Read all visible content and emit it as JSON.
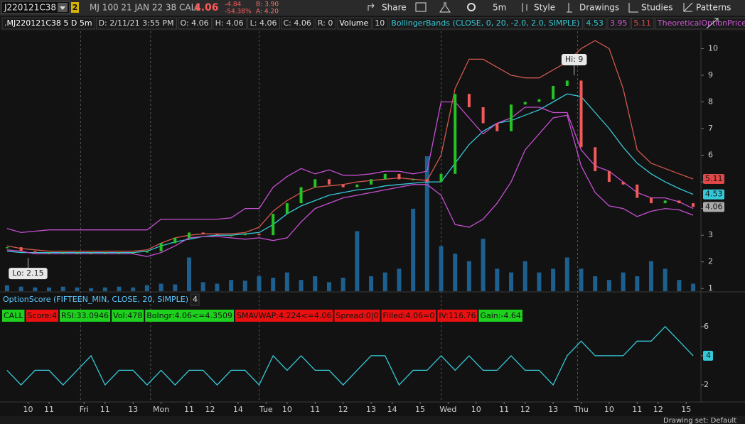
{
  "toolbar": {
    "symbol": "J220121C38",
    "link_group": "2",
    "description": "MJ 100 21 JAN 22 38 CALL",
    "last": "4.06",
    "change": "-4.84",
    "change_pct": "-54.38%",
    "bid": "B: 3.90",
    "ask": "A: 4.20",
    "buttons": [
      "Share",
      "5m",
      "Style",
      "Drawings",
      "Studies",
      "Patterns"
    ]
  },
  "info_bar": [
    {
      "text": ".MJ220121C38 5 D 5m",
      "color": "#ffffff"
    },
    {
      "text": "D: 2/11/21 3:55 PM",
      "color": "#d8d8d8"
    },
    {
      "text": "O: 4.06",
      "color": "#d8d8d8"
    },
    {
      "text": "H: 4.06",
      "color": "#d8d8d8"
    },
    {
      "text": "L: 4.06",
      "color": "#d8d8d8"
    },
    {
      "text": "C: 4.06",
      "color": "#d8d8d8"
    },
    {
      "text": "R: 0",
      "color": "#d8d8d8"
    },
    {
      "text": "Volume",
      "color": "#ffffff"
    },
    {
      "text": "10",
      "color": "#d8d8d8"
    },
    {
      "text": "BollingerBands (CLOSE, 0, 20, -2.0, 2.0, SIMPLE)",
      "color": "#35c9d8"
    },
    {
      "text": "4.53",
      "color": "#35c9d8"
    },
    {
      "text": "3.95",
      "color": "#d05ad8"
    },
    {
      "text": "5.11",
      "color": "#e04848"
    },
    {
      "text": "TheoreticalOptionPrice",
      "color": "#d05ad8"
    },
    {
      "text": "..",
      "color": "#d8d8d8"
    }
  ],
  "option_score_labels": [
    {
      "text": "CALL",
      "color": "#1fd11f"
    },
    {
      "text": "Score:4",
      "color": "#e81010"
    },
    {
      "text": "RSI:33.0946",
      "color": "#1fd11f"
    },
    {
      "text": "Vol:478",
      "color": "#1fd11f"
    },
    {
      "text": "Bolngr:4.06<=4.3509",
      "color": "#1fd11f"
    },
    {
      "text": "SMAVWAP:4.224<=4.06",
      "color": "#e81010"
    },
    {
      "text": "Spread:0|0",
      "color": "#e81010"
    },
    {
      "text": "Filled:4.06=0",
      "color": "#e81010"
    },
    {
      "text": "IV:116.76",
      "color": "#e81010"
    },
    {
      "text": "Gain:-4.64",
      "color": "#1fd11f"
    }
  ],
  "status_bar": "Drawing set: Default",
  "chart_data": [
    {
      "type": "candle-line",
      "xlim": [
        -0.5,
        98.5
      ],
      "ylim": [
        0.9,
        10.65
      ],
      "yticks": [
        1,
        2,
        3,
        4,
        5,
        6,
        7,
        8,
        9,
        10
      ],
      "xticks": [
        {
          "value": 3,
          "label": "10"
        },
        {
          "value": 6,
          "label": "11"
        },
        {
          "value": 11,
          "label": "Fri"
        },
        {
          "value": 14,
          "label": "11"
        },
        {
          "value": 18,
          "label": "13"
        },
        {
          "value": 22,
          "label": "Mon"
        },
        {
          "value": 26,
          "label": "11"
        },
        {
          "value": 29,
          "label": "12"
        },
        {
          "value": 33,
          "label": "14"
        },
        {
          "value": 37,
          "label": "Tue"
        },
        {
          "value": 40,
          "label": "10"
        },
        {
          "value": 44,
          "label": "11"
        },
        {
          "value": 48,
          "label": "12"
        },
        {
          "value": 52,
          "label": "13"
        },
        {
          "value": 55,
          "label": "14"
        },
        {
          "value": 59,
          "label": "15"
        },
        {
          "value": 63,
          "label": "Wed"
        },
        {
          "value": 67,
          "label": "10"
        },
        {
          "value": 71,
          "label": "11"
        },
        {
          "value": 74,
          "label": "12"
        },
        {
          "value": 78,
          "label": "13"
        },
        {
          "value": 82,
          "label": "Thu"
        },
        {
          "value": 86,
          "label": "10"
        },
        {
          "value": 90,
          "label": "11"
        },
        {
          "value": 93,
          "label": "12"
        },
        {
          "value": 97,
          "label": "15"
        }
      ],
      "session_breaks": [
        10.5,
        20.5,
        36,
        62,
        81.5
      ],
      "x": [
        0,
        2,
        4,
        6,
        8,
        10,
        12,
        14,
        16,
        18,
        20,
        22,
        24,
        26,
        28,
        30,
        32,
        34,
        36,
        38,
        40,
        42,
        44,
        46,
        48,
        50,
        52,
        54,
        56,
        58,
        60,
        62,
        64,
        66,
        68,
        70,
        72,
        74,
        76,
        78,
        80,
        82,
        84,
        86,
        88,
        90,
        92,
        94,
        96,
        98
      ],
      "close": [
        2.55,
        2.4,
        2.35,
        2.35,
        2.35,
        2.35,
        2.35,
        2.35,
        2.35,
        2.35,
        2.4,
        2.7,
        2.9,
        3.1,
        3.05,
        3.0,
        3.0,
        3.05,
        3.0,
        3.8,
        4.2,
        4.8,
        5.1,
        4.9,
        4.8,
        4.9,
        5.1,
        5.3,
        5.1,
        5.1,
        5.0,
        5.3,
        8.3,
        7.8,
        7.2,
        6.9,
        7.9,
        8.0,
        8.1,
        8.6,
        8.8,
        6.3,
        5.4,
        5.0,
        4.9,
        4.4,
        4.2,
        4.3,
        4.2,
        4.06
      ],
      "up_color": "#27c227",
      "down_color": "#f05a5a",
      "volume": [
        8,
        6,
        5,
        5,
        6,
        5,
        4,
        5,
        6,
        5,
        8,
        10,
        9,
        45,
        12,
        10,
        15,
        14,
        20,
        18,
        25,
        15,
        20,
        12,
        18,
        80,
        20,
        25,
        30,
        110,
        180,
        60,
        50,
        40,
        70,
        30,
        25,
        40,
        25,
        30,
        45,
        30,
        20,
        15,
        25,
        20,
        40,
        30,
        15,
        10
      ],
      "volume_color": "#1d5f8e",
      "series": [
        {
          "color": "#d0584c",
          "values": [
            2.6,
            2.5,
            2.45,
            2.4,
            2.4,
            2.4,
            2.4,
            2.4,
            2.4,
            2.4,
            2.45,
            2.7,
            2.9,
            3.0,
            3.05,
            3.05,
            3.05,
            3.1,
            3.3,
            3.9,
            4.3,
            4.6,
            4.8,
            4.85,
            4.9,
            5.0,
            5.05,
            5.1,
            5.15,
            5.1,
            5.05,
            6.0,
            8.5,
            9.6,
            9.6,
            9.3,
            9.0,
            8.9,
            8.9,
            9.2,
            9.5,
            10.0,
            10.3,
            10.0,
            8.5,
            6.2,
            5.7,
            5.5,
            5.3,
            5.11
          ]
        },
        {
          "color": "#35c9d8",
          "values": [
            2.4,
            2.35,
            2.35,
            2.35,
            2.35,
            2.35,
            2.35,
            2.35,
            2.35,
            2.35,
            2.4,
            2.6,
            2.75,
            2.85,
            2.95,
            3.0,
            3.0,
            3.05,
            3.1,
            3.4,
            3.8,
            4.1,
            4.3,
            4.5,
            4.6,
            4.7,
            4.75,
            4.85,
            4.9,
            4.95,
            5.0,
            5.0,
            5.7,
            6.4,
            6.9,
            7.2,
            7.3,
            7.5,
            7.7,
            8.0,
            8.3,
            8.2,
            7.6,
            7.0,
            6.3,
            5.7,
            5.3,
            5.0,
            4.75,
            4.53
          ]
        },
        {
          "color": "#c64fd2",
          "values": [
            3.25,
            3.1,
            3.15,
            3.2,
            3.2,
            3.2,
            3.2,
            3.2,
            3.2,
            3.2,
            3.2,
            3.6,
            3.6,
            3.6,
            3.6,
            3.6,
            3.65,
            4.0,
            4.0,
            4.8,
            5.2,
            5.5,
            5.3,
            5.45,
            5.25,
            5.25,
            5.3,
            5.4,
            5.4,
            5.3,
            5.4,
            8.0,
            8.0,
            7.4,
            6.8,
            7.2,
            7.4,
            7.8,
            7.8,
            7.6,
            7.6,
            6.2,
            5.6,
            5.4,
            5.0,
            4.6,
            4.4,
            4.4,
            4.25,
            4.0
          ]
        },
        {
          "color": "#c64fd2",
          "values": [
            2.45,
            2.4,
            2.3,
            2.3,
            2.3,
            2.3,
            2.3,
            2.3,
            2.3,
            2.3,
            2.2,
            2.35,
            2.6,
            2.9,
            2.95,
            2.95,
            2.9,
            2.85,
            2.9,
            2.8,
            2.9,
            3.5,
            4.0,
            4.2,
            4.4,
            4.5,
            4.6,
            4.7,
            4.8,
            4.9,
            4.9,
            4.5,
            3.4,
            3.3,
            3.6,
            4.2,
            5.0,
            6.2,
            6.8,
            7.4,
            7.5,
            5.6,
            4.6,
            4.1,
            4.0,
            3.7,
            3.9,
            4.0,
            3.95,
            3.75
          ]
        }
      ],
      "price_labels": [
        {
          "value": 5.11,
          "label": "5.11",
          "color": "#e04848"
        },
        {
          "value": 4.53,
          "label": "4.53",
          "color": "#35c9d8"
        },
        {
          "value": 4.06,
          "label": "4.06",
          "color": "#aaaaaa"
        }
      ],
      "annotations": [
        {
          "text": "Hi: 9",
          "x": 81,
          "y": 9,
          "side": "above"
        },
        {
          "text": "Lo: 2.15",
          "x": 3,
          "y": 2.15,
          "side": "below"
        }
      ]
    },
    {
      "type": "line",
      "title": "OptionScore (FIFTEEN_MIN, CLOSE, 20, SIMPLE)",
      "current": "4",
      "xlim": [
        -0.5,
        98.5
      ],
      "ylim": [
        1,
        7.5
      ],
      "yticks": [
        2,
        4,
        6
      ],
      "x": [
        0,
        2,
        4,
        6,
        8,
        10,
        12,
        14,
        16,
        18,
        20,
        22,
        24,
        26,
        28,
        30,
        32,
        34,
        36,
        38,
        40,
        42,
        44,
        46,
        48,
        50,
        52,
        54,
        56,
        58,
        60,
        62,
        64,
        66,
        68,
        70,
        72,
        74,
        76,
        78,
        80,
        82,
        84,
        86,
        88,
        90,
        92,
        94,
        96,
        98
      ],
      "color": "#35c9d8",
      "values": [
        3,
        2,
        3,
        3,
        2,
        3,
        4,
        2,
        3,
        3,
        2,
        3,
        2,
        3,
        3,
        2,
        3,
        3,
        2,
        4,
        3,
        4,
        3,
        3,
        2,
        3,
        4,
        4,
        2,
        3,
        3,
        4,
        3,
        4,
        3,
        3,
        4,
        3,
        3,
        2,
        4,
        5,
        4,
        4,
        4,
        5,
        5,
        6,
        5,
        4
      ],
      "last_label": {
        "value": 4,
        "label": "4"
      }
    }
  ]
}
